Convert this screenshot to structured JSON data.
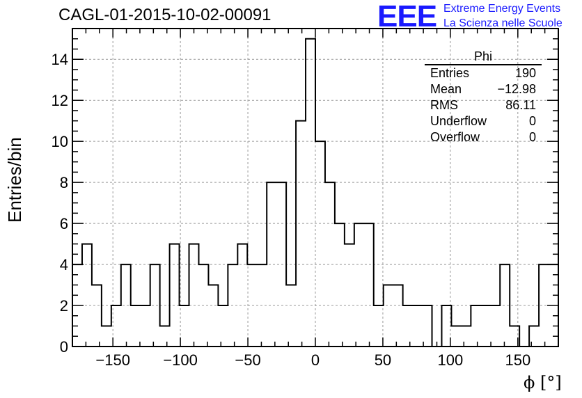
{
  "title": "CAGL-01-2015-10-02-00091",
  "logo": {
    "mark": "EEE",
    "line1": "Extreme Energy Events",
    "line2": "La Scienza nelle Scuole",
    "color": "#1a1aff"
  },
  "stats_box": {
    "title": "Phi",
    "rows": [
      {
        "label": "Entries",
        "value": "190"
      },
      {
        "label": "Mean",
        "value": "−12.98"
      },
      {
        "label": "RMS",
        "value": "86.11"
      },
      {
        "label": "Underflow",
        "value": "0"
      },
      {
        "label": "Overflow",
        "value": "0"
      }
    ]
  },
  "chart_data": {
    "type": "bar",
    "style": "step-histogram",
    "xlabel": "ϕ [°]",
    "ylabel": "Entries/bin",
    "xlim": [
      -180,
      180
    ],
    "ylim": [
      0,
      15.5
    ],
    "x_ticks": [
      -150,
      -100,
      -50,
      0,
      50,
      100,
      150
    ],
    "x_tick_labels": [
      "−150",
      "−100",
      "−50",
      "0",
      "50",
      "100",
      "150"
    ],
    "y_ticks": [
      0,
      2,
      4,
      6,
      8,
      10,
      12,
      14
    ],
    "grid": true,
    "bin_width": 7.2,
    "bin_edges_start": -180,
    "values": [
      4,
      5,
      3,
      1,
      2,
      4,
      2,
      2,
      4,
      1,
      5,
      2,
      5,
      4,
      3,
      2,
      4,
      5,
      4,
      4,
      8,
      8,
      3,
      11,
      15,
      10,
      8,
      6,
      5,
      6,
      6,
      2,
      3,
      3,
      2,
      2,
      2,
      0,
      2,
      1,
      1,
      2,
      2,
      2,
      4,
      1,
      0,
      1,
      4,
      4
    ]
  }
}
